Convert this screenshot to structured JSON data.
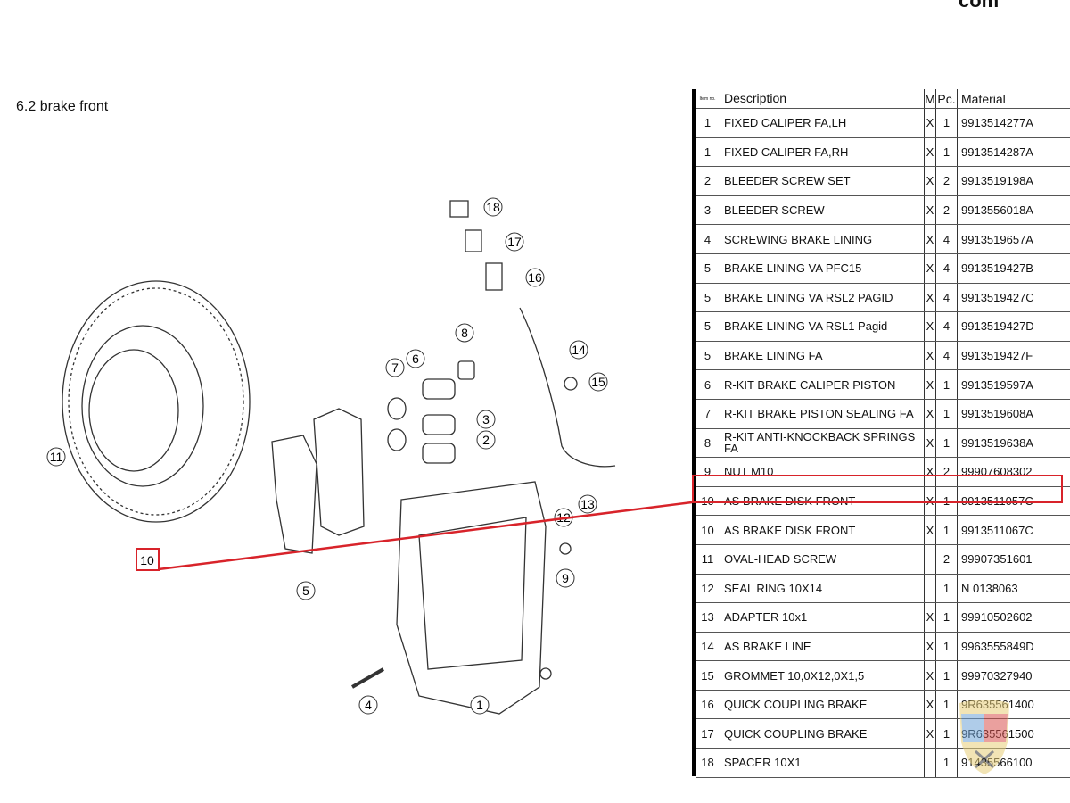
{
  "site_fragment": "com",
  "section_title": "6.2  brake front",
  "table": {
    "headers": {
      "item": "Item no.",
      "description": "Description",
      "m": "M",
      "pc": "Pc.",
      "material": "Material"
    },
    "rows": [
      {
        "item": "1",
        "description": "FIXED CALIPER FA,LH",
        "m": "X",
        "pc": "1",
        "material": "9913514277A"
      },
      {
        "item": "1",
        "description": "FIXED CALIPER FA,RH",
        "m": "X",
        "pc": "1",
        "material": "9913514287A"
      },
      {
        "item": "2",
        "description": "BLEEDER SCREW SET",
        "m": "X",
        "pc": "2",
        "material": "9913519198A"
      },
      {
        "item": "3",
        "description": "BLEEDER SCREW",
        "m": "X",
        "pc": "2",
        "material": "9913556018A"
      },
      {
        "item": "4",
        "description": "SCREWING BRAKE LINING",
        "m": "X",
        "pc": "4",
        "material": "9913519657A"
      },
      {
        "item": "5",
        "description": "BRAKE LINING VA PFC15",
        "m": "X",
        "pc": "4",
        "material": "9913519427B"
      },
      {
        "item": "5",
        "description": "BRAKE LINING VA RSL2 PAGID",
        "m": "X",
        "pc": "4",
        "material": "9913519427C"
      },
      {
        "item": "5",
        "description": "BRAKE LINING VA RSL1 Pagid",
        "m": "X",
        "pc": "4",
        "material": "9913519427D"
      },
      {
        "item": "5",
        "description": "BRAKE LINING FA",
        "m": "X",
        "pc": "4",
        "material": "9913519427F"
      },
      {
        "item": "6",
        "description": "R-KIT BRAKE CALIPER PISTON",
        "m": "X",
        "pc": "1",
        "material": "9913519597A"
      },
      {
        "item": "7",
        "description": "R-KIT BRAKE PISTON SEALING FA",
        "m": "X",
        "pc": "1",
        "material": "9913519608A"
      },
      {
        "item": "8",
        "description": "R-KIT ANTI-KNOCKBACK SPRINGS FA",
        "m": "X",
        "pc": "1",
        "material": "9913519638A"
      },
      {
        "item": "9",
        "description": "NUT M10",
        "m": "X",
        "pc": "2",
        "material": "99907608302"
      },
      {
        "item": "10",
        "description": "AS BRAKE DISK FRONT",
        "m": "X",
        "pc": "1",
        "material": "9913511057C"
      },
      {
        "item": "10",
        "description": "AS BRAKE DISK FRONT",
        "m": "X",
        "pc": "1",
        "material": "9913511067C"
      },
      {
        "item": "11",
        "description": "OVAL-HEAD SCREW",
        "m": "",
        "pc": "2",
        "material": "99907351601"
      },
      {
        "item": "12",
        "description": "SEAL RING 10X14",
        "m": "",
        "pc": "1",
        "material": "N  0138063"
      },
      {
        "item": "13",
        "description": "ADAPTER 10x1",
        "m": "X",
        "pc": "1",
        "material": "99910502602"
      },
      {
        "item": "14",
        "description": "AS BRAKE LINE",
        "m": "X",
        "pc": "1",
        "material": "9963555849D"
      },
      {
        "item": "15",
        "description": "GROMMET 10,0X12,0X1,5",
        "m": "X",
        "pc": "1",
        "material": "99970327940"
      },
      {
        "item": "16",
        "description": "QUICK COUPLING BRAKE",
        "m": "X",
        "pc": "1",
        "material": "9R635561400"
      },
      {
        "item": "17",
        "description": "QUICK COUPLING BRAKE",
        "m": "X",
        "pc": "1",
        "material": "9R635561500"
      },
      {
        "item": "18",
        "description": "SPACER 10X1",
        "m": "",
        "pc": "1",
        "material": "91435566100"
      }
    ]
  },
  "highlight_color": "#d8232a",
  "callouts": [
    "18",
    "17",
    "16",
    "8",
    "14",
    "15",
    "7",
    "6",
    "3",
    "2",
    "11",
    "13",
    "12",
    "10",
    "5",
    "9",
    "4",
    "1"
  ],
  "watermark_logo_text": "ALBERT"
}
